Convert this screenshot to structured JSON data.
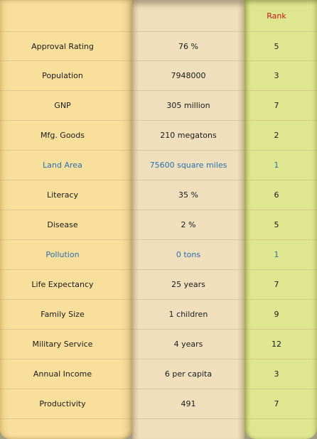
{
  "header": {
    "rank_label": "Rank"
  },
  "rows": [
    {
      "label": "Approval Rating",
      "value": "76 %",
      "rank": "5",
      "highlight": false
    },
    {
      "label": "Population",
      "value": "7948000",
      "rank": "3",
      "highlight": false
    },
    {
      "label": "GNP",
      "value": "305 million",
      "rank": "7",
      "highlight": false
    },
    {
      "label": "Mfg. Goods",
      "value": "210 megatons",
      "rank": "2",
      "highlight": false
    },
    {
      "label": "Land Area",
      "value": "75600 square miles",
      "rank": "1",
      "highlight": true
    },
    {
      "label": "Literacy",
      "value": "35 %",
      "rank": "6",
      "highlight": false
    },
    {
      "label": "Disease",
      "value": "2 %",
      "rank": "5",
      "highlight": false
    },
    {
      "label": "Pollution",
      "value": "0 tons",
      "rank": "1",
      "highlight": true
    },
    {
      "label": "Life Expectancy",
      "value": "25 years",
      "rank": "7",
      "highlight": false
    },
    {
      "label": "Family Size",
      "value": "1 children",
      "rank": "9",
      "highlight": false
    },
    {
      "label": "Military Service",
      "value": "4 years",
      "rank": "12",
      "highlight": false
    },
    {
      "label": "Annual Income",
      "value": "6 per capita",
      "rank": "3",
      "highlight": false
    },
    {
      "label": "Productivity",
      "value": "491",
      "rank": "7",
      "highlight": false
    }
  ],
  "colors": {
    "rank_header": "#c41a1a",
    "highlight_text": "#2a6fae",
    "label_column": "#f8df9c",
    "value_column": "#efdfbd",
    "rank_column": "#dfe690"
  }
}
